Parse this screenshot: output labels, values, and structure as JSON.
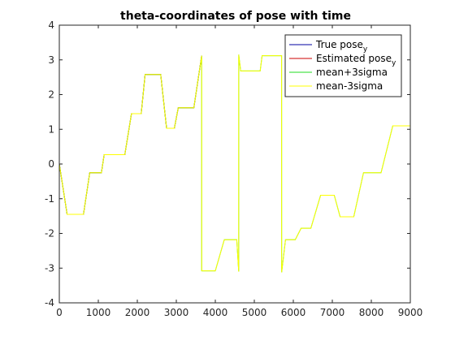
{
  "chart_data": {
    "type": "line",
    "title": "theta-coordinates of pose with time",
    "xlabel": "",
    "ylabel": "",
    "xlim": [
      0,
      9000
    ],
    "ylim": [
      -4,
      4
    ],
    "xticks": [
      "0",
      "1000",
      "2000",
      "3000",
      "4000",
      "5000",
      "6000",
      "7000",
      "8000",
      "9000"
    ],
    "yticks": [
      "-4",
      "-3",
      "-2",
      "-1",
      "0",
      "1",
      "2",
      "3",
      "4"
    ],
    "grid": false,
    "legend_position": "top-right",
    "series": [
      {
        "name": "True pose_y",
        "color": "#0000a0",
        "x": [
          0,
          200,
          620,
          780,
          1080,
          1150,
          1680,
          1850,
          2100,
          2200,
          2600,
          2750,
          2950,
          3050,
          3450,
          3650
        ],
        "y": [
          0,
          -1.45,
          -1.45,
          -0.25,
          -0.25,
          0.27,
          0.27,
          1.45,
          1.45,
          2.58,
          2.58,
          1.03,
          1.03,
          1.62,
          1.62,
          3.12
        ]
      },
      {
        "name": "Estimated pose_y",
        "color": "#cc0000",
        "x": [
          0,
          200,
          620,
          780,
          1080,
          1150,
          1680,
          1850,
          2100,
          2200,
          2600,
          2750,
          2950,
          3050,
          3450,
          3650
        ],
        "y": [
          0,
          -1.45,
          -1.45,
          -0.25,
          -0.25,
          0.27,
          0.27,
          1.45,
          1.45,
          2.58,
          2.58,
          1.03,
          1.03,
          1.62,
          1.62,
          3.12
        ]
      },
      {
        "name": "mean+3sigma",
        "color": "#22dd22",
        "x": [
          0,
          200,
          620,
          780,
          1080,
          1150,
          1680,
          1850,
          2100,
          2200,
          2600,
          2750,
          2950,
          3050,
          3450,
          3650,
          3651,
          4000,
          4230,
          4550,
          4600,
          4601,
          4650,
          5150,
          5200,
          5700,
          5701,
          5800,
          6050,
          6200,
          6450,
          6700,
          7050,
          7200,
          7550,
          7800,
          8250,
          8550,
          9000
        ],
        "y": [
          0,
          -1.45,
          -1.45,
          -0.25,
          -0.25,
          0.27,
          0.27,
          1.45,
          1.45,
          2.58,
          2.58,
          1.03,
          1.03,
          1.62,
          1.62,
          3.12,
          -3.08,
          -3.08,
          -2.18,
          -2.18,
          -3.1,
          3.15,
          2.68,
          2.68,
          3.12,
          3.12,
          -3.12,
          -2.18,
          -2.18,
          -1.85,
          -1.85,
          -0.9,
          -0.9,
          -1.52,
          -1.52,
          -0.25,
          -0.25,
          1.1,
          1.1
        ]
      },
      {
        "name": "mean-3sigma",
        "color": "#ffff00",
        "x": [
          0,
          200,
          620,
          780,
          1080,
          1150,
          1680,
          1850,
          2100,
          2200,
          2600,
          2750,
          2950,
          3050,
          3450,
          3650,
          3651,
          4000,
          4230,
          4550,
          4600,
          4601,
          4650,
          5150,
          5200,
          5700,
          5701,
          5800,
          6050,
          6200,
          6450,
          6700,
          7050,
          7200,
          7550,
          7800,
          8250,
          8550,
          9000
        ],
        "y": [
          0,
          -1.45,
          -1.45,
          -0.25,
          -0.25,
          0.27,
          0.27,
          1.45,
          1.45,
          2.58,
          2.58,
          1.03,
          1.03,
          1.62,
          1.62,
          3.12,
          -3.08,
          -3.08,
          -2.18,
          -2.18,
          -3.1,
          3.15,
          2.68,
          2.68,
          3.12,
          3.12,
          -3.12,
          -2.18,
          -2.18,
          -1.85,
          -1.85,
          -0.9,
          -0.9,
          -1.52,
          -1.52,
          -0.25,
          -0.25,
          1.1,
          1.1
        ]
      }
    ],
    "legend": [
      {
        "text": "True pose",
        "subscript": "y",
        "color": "#0000a0"
      },
      {
        "text": "Estimated pose",
        "subscript": "y",
        "color": "#cc0000"
      },
      {
        "text": "mean+3sigma",
        "subscript": "",
        "color": "#22dd22"
      },
      {
        "text": "mean-3sigma",
        "subscript": "",
        "color": "#ffff00"
      }
    ]
  }
}
